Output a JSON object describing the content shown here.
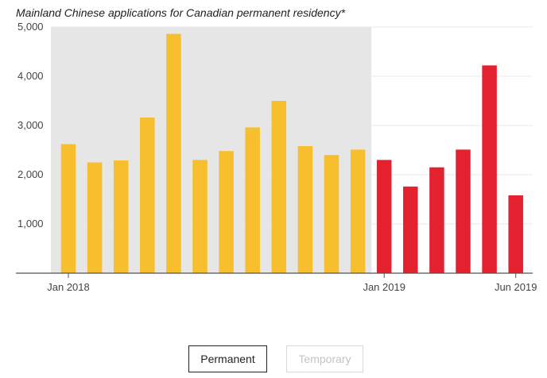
{
  "chart_data": {
    "type": "bar",
    "title": "Mainland Chinese applications for Canadian permanent residency*",
    "categories": [
      "2018-01",
      "2018-02",
      "2018-03",
      "2018-04",
      "2018-05",
      "2018-06",
      "2018-07",
      "2018-08",
      "2018-09",
      "2018-10",
      "2018-11",
      "2018-12",
      "2019-01",
      "2019-02",
      "2019-03",
      "2019-04",
      "2019-05",
      "2019-06"
    ],
    "values": [
      2620,
      2250,
      2290,
      3160,
      4860,
      2300,
      2480,
      2960,
      3500,
      2580,
      2400,
      2510,
      2300,
      1760,
      2150,
      2510,
      4220,
      1580
    ],
    "bar_colors": [
      "#f7bf2e",
      "#f7bf2e",
      "#f7bf2e",
      "#f7bf2e",
      "#f7bf2e",
      "#f7bf2e",
      "#f7bf2e",
      "#f7bf2e",
      "#f7bf2e",
      "#f7bf2e",
      "#f7bf2e",
      "#f7bf2e",
      "#e3212f",
      "#e3212f",
      "#e3212f",
      "#e3212f",
      "#e3212f",
      "#e3212f"
    ],
    "shaded_period": {
      "start": "2018-01",
      "end": "2018-12",
      "color": "#e6e6e6"
    },
    "yticks": [
      1000,
      2000,
      3000,
      4000,
      5000
    ],
    "ytick_labels": [
      "1,000",
      "2,000",
      "3,000",
      "4,000",
      "5,000"
    ],
    "ylim": [
      0,
      5000
    ],
    "xticks": [
      {
        "category": "2018-01",
        "label": "Jan 2018"
      },
      {
        "category": "2019-01",
        "label": "Jan 2019"
      },
      {
        "category": "2019-06",
        "label": "Jun 2019"
      }
    ],
    "grid": true
  },
  "toggles": {
    "permanent_label": "Permanent",
    "temporary_label": "Temporary"
  }
}
